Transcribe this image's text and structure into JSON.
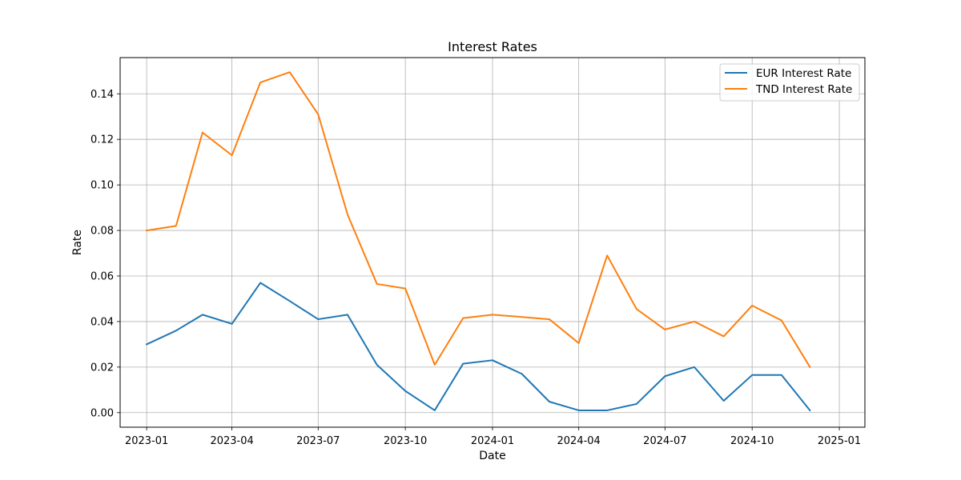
{
  "chart_data": {
    "type": "line",
    "title": "Interest Rates",
    "xlabel": "Date",
    "ylabel": "Rate",
    "x": [
      "2023-01-01",
      "2023-02-01",
      "2023-03-01",
      "2023-04-01",
      "2023-05-01",
      "2023-06-01",
      "2023-07-01",
      "2023-08-01",
      "2023-09-01",
      "2023-10-01",
      "2023-11-01",
      "2023-12-01",
      "2024-01-01",
      "2024-02-01",
      "2024-03-01",
      "2024-04-01",
      "2024-05-01",
      "2024-06-01",
      "2024-07-01",
      "2024-08-01",
      "2024-09-01",
      "2024-10-01",
      "2024-11-01",
      "2024-12-01"
    ],
    "series": [
      {
        "name": "EUR Interest Rate",
        "color": "#1f77b4",
        "values": [
          0.03,
          0.036,
          0.043,
          0.039,
          0.057,
          0.049,
          0.041,
          0.043,
          0.021,
          0.0095,
          0.001,
          0.0215,
          0.023,
          0.017,
          0.0048,
          0.001,
          0.001,
          0.0038,
          0.016,
          0.02,
          0.0052,
          0.0165,
          0.0165,
          0.001
        ]
      },
      {
        "name": "TND Interest Rate",
        "color": "#ff7f0e",
        "values": [
          0.08,
          0.082,
          0.123,
          0.113,
          0.145,
          0.1495,
          0.131,
          0.087,
          0.0565,
          0.0545,
          0.021,
          0.0415,
          0.043,
          0.042,
          0.041,
          0.0305,
          0.069,
          0.0455,
          0.0365,
          0.04,
          0.0335,
          0.047,
          0.0405,
          0.02
        ]
      }
    ],
    "xticks": [
      "2023-01",
      "2023-04",
      "2023-07",
      "2023-10",
      "2024-01",
      "2024-04",
      "2024-07",
      "2024-10",
      "2025-01"
    ],
    "yticks": [
      "0.00",
      "0.02",
      "0.04",
      "0.06",
      "0.08",
      "0.10",
      "0.12",
      "0.14"
    ],
    "xlim": [
      "2022-12-04",
      "2025-01-28"
    ],
    "ylim": [
      -0.0064,
      0.1559
    ],
    "grid": true,
    "legend_position": "top-right"
  }
}
